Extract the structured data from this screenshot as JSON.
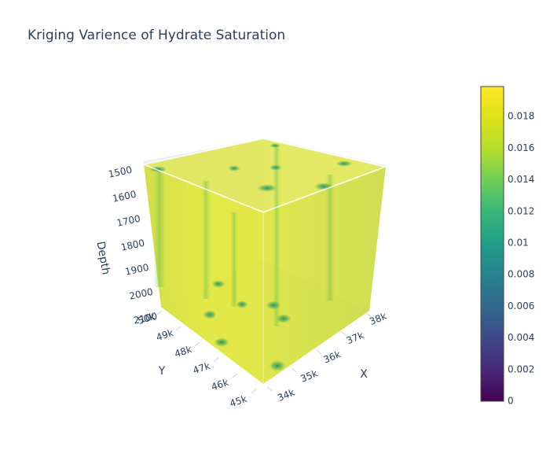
{
  "chart_data": {
    "type": "volume",
    "title": "Kriging Varience of Hydrate Saturation",
    "axes": {
      "x": {
        "label": "X",
        "ticks": [
          "34k",
          "35k",
          "36k",
          "37k",
          "38k"
        ]
      },
      "y": {
        "label": "Y",
        "ticks": [
          "45k",
          "46k",
          "47k",
          "48k",
          "49k",
          "50k"
        ]
      },
      "z": {
        "label": "Depth",
        "ticks": [
          "1500",
          "1600",
          "1700",
          "1800",
          "1900",
          "2000",
          "2100"
        ],
        "reversed": true
      }
    },
    "colorbar": {
      "colorscale": "Viridis",
      "range": [
        0,
        0.0199
      ],
      "ticks": [
        "0",
        "0.002",
        "0.004",
        "0.006",
        "0.008",
        "0.01",
        "0.012",
        "0.014",
        "0.016",
        "0.018"
      ]
    },
    "colors": {
      "volume_fill": "#dde63a",
      "low_spots": "#2f9f6f",
      "grid": "#e5ecf6",
      "text": "#2a3f5f"
    }
  }
}
